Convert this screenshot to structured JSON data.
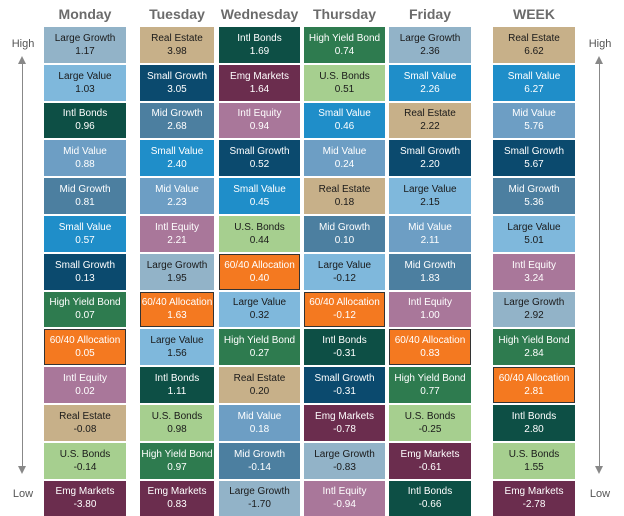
{
  "chart_data": {
    "type": "table",
    "title": "",
    "high_label": "High",
    "low_label": "Low",
    "columns": [
      {
        "name": "Monday",
        "cells": [
          {
            "asset": "Large Growth",
            "value": "1.17"
          },
          {
            "asset": "Large Value",
            "value": "1.03"
          },
          {
            "asset": "Intl Bonds",
            "value": "0.96"
          },
          {
            "asset": "Mid Value",
            "value": "0.88"
          },
          {
            "asset": "Mid Growth",
            "value": "0.81"
          },
          {
            "asset": "Small Value",
            "value": "0.57"
          },
          {
            "asset": "Small Growth",
            "value": "0.13"
          },
          {
            "asset": "High Yield Bond",
            "value": "0.07"
          },
          {
            "asset": "60/40 Allocation",
            "value": "0.05"
          },
          {
            "asset": "Intl Equity",
            "value": "0.02"
          },
          {
            "asset": "Real Estate",
            "value": "-0.08"
          },
          {
            "asset": "U.S. Bonds",
            "value": "-0.14"
          },
          {
            "asset": "Emg Markets",
            "value": "-3.80"
          }
        ]
      },
      {
        "name": "Tuesday",
        "cells": [
          {
            "asset": "Real Estate",
            "value": "3.98"
          },
          {
            "asset": "Small Growth",
            "value": "3.05"
          },
          {
            "asset": "Mid Growth",
            "value": "2.68"
          },
          {
            "asset": "Small Value",
            "value": "2.40"
          },
          {
            "asset": "Mid Value",
            "value": "2.23"
          },
          {
            "asset": "Intl Equity",
            "value": "2.21"
          },
          {
            "asset": "Large Growth",
            "value": "1.95"
          },
          {
            "asset": "60/40 Allocation",
            "value": "1.63"
          },
          {
            "asset": "Large Value",
            "value": "1.56"
          },
          {
            "asset": "Intl Bonds",
            "value": "1.11"
          },
          {
            "asset": "U.S. Bonds",
            "value": "0.98"
          },
          {
            "asset": "High Yield Bond",
            "value": "0.97"
          },
          {
            "asset": "Emg Markets",
            "value": "0.83"
          }
        ]
      },
      {
        "name": "Wednesday",
        "cells": [
          {
            "asset": "Intl Bonds",
            "value": "1.69"
          },
          {
            "asset": "Emg Markets",
            "value": "1.64"
          },
          {
            "asset": "Intl Equity",
            "value": "0.94"
          },
          {
            "asset": "Small Growth",
            "value": "0.52"
          },
          {
            "asset": "Small Value",
            "value": "0.45"
          },
          {
            "asset": "U.S. Bonds",
            "value": "0.44"
          },
          {
            "asset": "60/40 Allocation",
            "value": "0.40"
          },
          {
            "asset": "Large Value",
            "value": "0.32"
          },
          {
            "asset": "High Yield Bond",
            "value": "0.27"
          },
          {
            "asset": "Real Estate",
            "value": "0.20"
          },
          {
            "asset": "Mid Value",
            "value": "0.18"
          },
          {
            "asset": "Mid Growth",
            "value": "-0.14"
          },
          {
            "asset": "Large Growth",
            "value": "-1.70"
          }
        ]
      },
      {
        "name": "Thursday",
        "cells": [
          {
            "asset": "High Yield Bond",
            "value": "0.74"
          },
          {
            "asset": "U.S. Bonds",
            "value": "0.51"
          },
          {
            "asset": "Small Value",
            "value": "0.46"
          },
          {
            "asset": "Mid Value",
            "value": "0.24"
          },
          {
            "asset": "Real Estate",
            "value": "0.18"
          },
          {
            "asset": "Mid Growth",
            "value": "0.10"
          },
          {
            "asset": "Large Value",
            "value": "-0.12"
          },
          {
            "asset": "60/40 Allocation",
            "value": "-0.12"
          },
          {
            "asset": "Intl Bonds",
            "value": "-0.31"
          },
          {
            "asset": "Small Growth",
            "value": "-0.31"
          },
          {
            "asset": "Emg Markets",
            "value": "-0.78"
          },
          {
            "asset": "Large Growth",
            "value": "-0.83"
          },
          {
            "asset": "Intl Equity",
            "value": "-0.94"
          }
        ]
      },
      {
        "name": "Friday",
        "cells": [
          {
            "asset": "Large Growth",
            "value": "2.36"
          },
          {
            "asset": "Small Value",
            "value": "2.26"
          },
          {
            "asset": "Real Estate",
            "value": "2.22"
          },
          {
            "asset": "Small Growth",
            "value": "2.20"
          },
          {
            "asset": "Large Value",
            "value": "2.15"
          },
          {
            "asset": "Mid Value",
            "value": "2.11"
          },
          {
            "asset": "Mid Growth",
            "value": "1.83"
          },
          {
            "asset": "Intl Equity",
            "value": "1.00"
          },
          {
            "asset": "60/40 Allocation",
            "value": "0.83"
          },
          {
            "asset": "High Yield Bond",
            "value": "0.77"
          },
          {
            "asset": "U.S. Bonds",
            "value": "-0.25"
          },
          {
            "asset": "Emg Markets",
            "value": "-0.61"
          },
          {
            "asset": "Intl Bonds",
            "value": "-0.66"
          }
        ]
      },
      {
        "name": "WEEK",
        "cells": [
          {
            "asset": "Real Estate",
            "value": "6.62"
          },
          {
            "asset": "Small Value",
            "value": "6.27"
          },
          {
            "asset": "Mid Value",
            "value": "5.76"
          },
          {
            "asset": "Small Growth",
            "value": "5.67"
          },
          {
            "asset": "Mid Growth",
            "value": "5.36"
          },
          {
            "asset": "Large Value",
            "value": "5.01"
          },
          {
            "asset": "Intl Equity",
            "value": "3.24"
          },
          {
            "asset": "Large Growth",
            "value": "2.92"
          },
          {
            "asset": "High Yield Bond",
            "value": "2.84"
          },
          {
            "asset": "60/40 Allocation",
            "value": "2.81"
          },
          {
            "asset": "Intl Bonds",
            "value": "2.80"
          },
          {
            "asset": "U.S. Bonds",
            "value": "1.55"
          },
          {
            "asset": "Emg Markets",
            "value": "-2.78"
          }
        ]
      }
    ],
    "asset_colors": {
      "Large Growth": "#92b3c8",
      "Large Value": "#7fb8dc",
      "Intl Bonds": "#0d4f45",
      "Mid Value": "#6d9ec4",
      "Mid Growth": "#4c7fa0",
      "Small Value": "#1f8ec9",
      "Small Growth": "#0b4a6e",
      "High Yield Bond": "#2e7b4f",
      "60/40 Allocation": "#f47920",
      "Intl Equity": "#a9779a",
      "Real Estate": "#c7b089",
      "U.S. Bonds": "#a6cf8f",
      "Emg Markets": "#6b2d4e"
    }
  }
}
